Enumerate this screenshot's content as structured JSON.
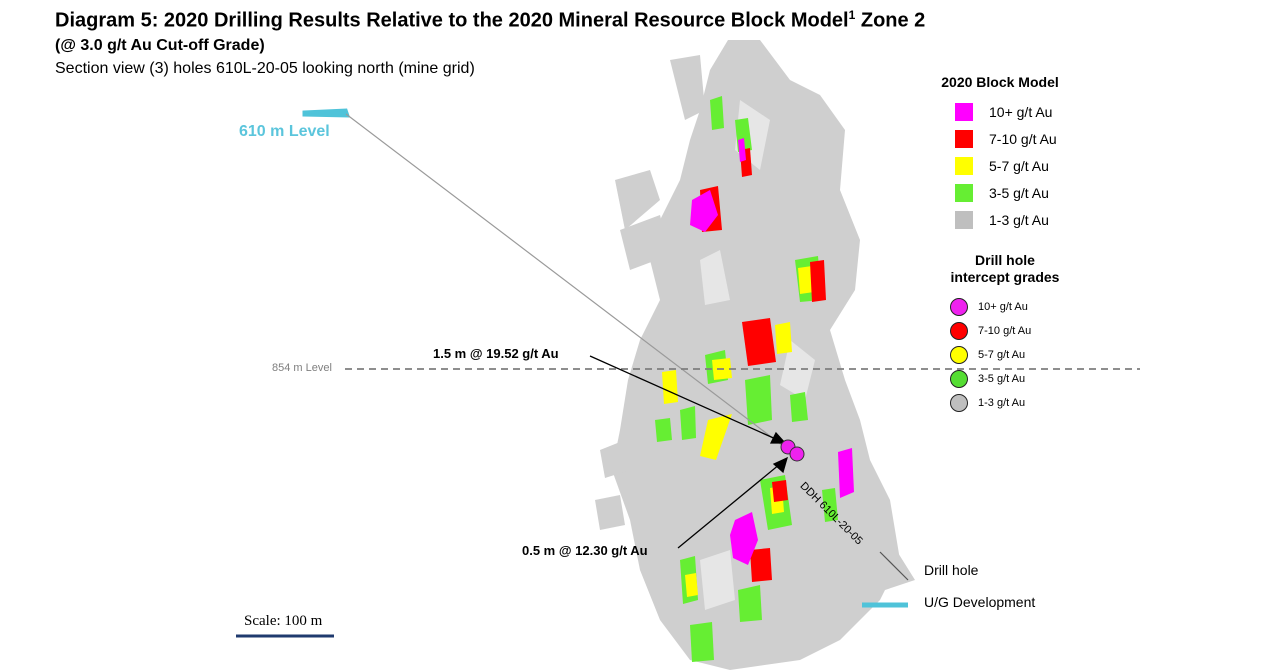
{
  "title": "Diagram 5: 2020 Drilling Results Relative to the 2020 Mineral Resource Block Model",
  "title_sup": "1",
  "title_suffix": " Zone 2",
  "subtitle": "(@ 3.0 g/t Au Cut-off Grade)",
  "section": "Section view (3) holes 610L-20-05 looking north (mine grid)",
  "levels": {
    "level610": "610 m Level",
    "level854": "854 m Level"
  },
  "intercepts": {
    "upper": "1.5 m @ 19.52 g/t Au",
    "lower": "0.5 m @ 12.30 g/t Au"
  },
  "drill_hole_id": "DDH 610L-20-05",
  "scale": "Scale: 100 m",
  "block_model_legend": {
    "title": "2020 Block Model",
    "items": [
      {
        "label": "10+ g/t Au",
        "color": "#ff00ff"
      },
      {
        "label": "7-10 g/t Au",
        "color": "#ff0000"
      },
      {
        "label": "5-7 g/t Au",
        "color": "#ffff00"
      },
      {
        "label": "3-5 g/t Au",
        "color": "#66ee33"
      },
      {
        "label": "1-3 g/t Au",
        "color": "#bfbfbf"
      }
    ]
  },
  "intercept_legend": {
    "title_line1": "Drill hole",
    "title_line2": "intercept grades",
    "items": [
      {
        "label": "10+ g/t Au",
        "color": "#ee22ee"
      },
      {
        "label": "7-10 g/t Au",
        "color": "#ff0000"
      },
      {
        "label": "5-7 g/t Au",
        "color": "#ffff00"
      },
      {
        "label": "3-5 g/t Au",
        "color": "#55dd33"
      },
      {
        "label": "1-3 g/t Au",
        "color": "#bfbfbf"
      }
    ]
  },
  "key": {
    "drill_hole": "Drill hole",
    "ug_development": "U/G Development"
  }
}
